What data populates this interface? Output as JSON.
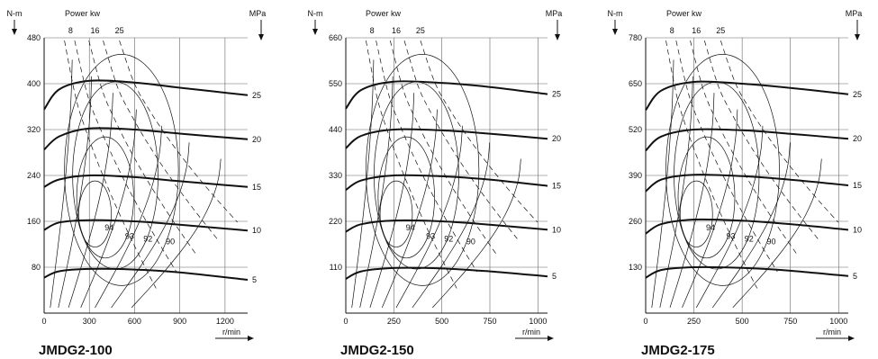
{
  "chart_data": [
    {
      "type": "line",
      "title": "JMDG2-100",
      "y_unit": "N-m",
      "x_unit": "r/min",
      "power_label": "Power kw",
      "power_values": [
        "8",
        "16",
        "25"
      ],
      "pressure_unit": "MPa",
      "pressure_values": [
        "25",
        "20",
        "15",
        "10",
        "5"
      ],
      "efficiency_labels": [
        "94",
        "93",
        "92",
        "90"
      ],
      "xlim": [
        0,
        1350
      ],
      "ylim": [
        0,
        480
      ],
      "x_ticks": [
        "0",
        "300",
        "600",
        "900",
        "1200"
      ],
      "x_tick_values": [
        0,
        300,
        600,
        900,
        1200
      ],
      "y_ticks": [
        "480",
        "400",
        "320",
        "240",
        "160",
        "80"
      ],
      "y_tick_values": [
        480,
        400,
        320,
        240,
        160,
        80
      ],
      "series": [
        {
          "name": "25",
          "x": [
            0,
            100,
            300,
            600,
            900,
            1350
          ],
          "y": [
            355,
            390,
            405,
            402,
            393,
            380
          ]
        },
        {
          "name": "20",
          "x": [
            0,
            100,
            300,
            600,
            900,
            1350
          ],
          "y": [
            285,
            308,
            322,
            320,
            313,
            303
          ]
        },
        {
          "name": "15",
          "x": [
            0,
            100,
            300,
            600,
            900,
            1350
          ],
          "y": [
            220,
            233,
            240,
            237,
            230,
            220
          ]
        },
        {
          "name": "10",
          "x": [
            0,
            100,
            300,
            600,
            900,
            1350
          ],
          "y": [
            145,
            158,
            162,
            160,
            154,
            144
          ]
        },
        {
          "name": "5",
          "x": [
            0,
            100,
            300,
            600,
            900,
            1350
          ],
          "y": [
            62,
            73,
            77,
            76,
            71,
            58
          ]
        }
      ]
    },
    {
      "type": "line",
      "title": "JMDG2-150",
      "y_unit": "N-m",
      "x_unit": "r/min",
      "power_label": "Power kw",
      "power_values": [
        "8",
        "16",
        "25"
      ],
      "pressure_unit": "MPa",
      "pressure_values": [
        "25",
        "20",
        "15",
        "10",
        "5"
      ],
      "efficiency_labels": [
        "94",
        "93",
        "92",
        "90"
      ],
      "xlim": [
        0,
        1050
      ],
      "ylim": [
        0,
        660
      ],
      "x_ticks": [
        "0",
        "250",
        "500",
        "750",
        "1000"
      ],
      "x_tick_values": [
        0,
        250,
        500,
        750,
        1000
      ],
      "y_ticks": [
        "660",
        "550",
        "440",
        "330",
        "220",
        "110"
      ],
      "y_tick_values": [
        660,
        550,
        440,
        330,
        220,
        110
      ],
      "series": [
        {
          "name": "25",
          "x": [
            0,
            80,
            250,
            500,
            750,
            1050
          ],
          "y": [
            490,
            535,
            555,
            552,
            542,
            525
          ]
        },
        {
          "name": "20",
          "x": [
            0,
            80,
            250,
            500,
            750,
            1050
          ],
          "y": [
            395,
            425,
            440,
            438,
            430,
            418
          ]
        },
        {
          "name": "15",
          "x": [
            0,
            80,
            250,
            500,
            750,
            1050
          ],
          "y": [
            295,
            318,
            330,
            328,
            320,
            305
          ]
        },
        {
          "name": "10",
          "x": [
            0,
            80,
            250,
            500,
            750,
            1050
          ],
          "y": [
            195,
            213,
            222,
            220,
            212,
            200
          ]
        },
        {
          "name": "5",
          "x": [
            0,
            80,
            250,
            500,
            750,
            1050
          ],
          "y": [
            82,
            100,
            108,
            107,
            100,
            88
          ]
        }
      ]
    },
    {
      "type": "line",
      "title": "JMDG2-175",
      "y_unit": "N-m",
      "x_unit": "r/min",
      "power_label": "Power kw",
      "power_values": [
        "8",
        "16",
        "25"
      ],
      "pressure_unit": "MPa",
      "pressure_values": [
        "25",
        "20",
        "15",
        "10",
        "5"
      ],
      "efficiency_labels": [
        "94",
        "93",
        "92",
        "90"
      ],
      "xlim": [
        0,
        1050
      ],
      "ylim": [
        0,
        780
      ],
      "x_ticks": [
        "0",
        "250",
        "500",
        "750",
        "1000"
      ],
      "x_tick_values": [
        0,
        250,
        500,
        750,
        1000
      ],
      "y_ticks": [
        "780",
        "650",
        "520",
        "390",
        "260",
        "130"
      ],
      "y_tick_values": [
        780,
        650,
        520,
        390,
        260,
        130
      ],
      "series": [
        {
          "name": "25",
          "x": [
            0,
            80,
            250,
            500,
            750,
            1050
          ],
          "y": [
            575,
            630,
            655,
            650,
            638,
            620
          ]
        },
        {
          "name": "20",
          "x": [
            0,
            80,
            250,
            500,
            750,
            1050
          ],
          "y": [
            460,
            500,
            520,
            518,
            508,
            494
          ]
        },
        {
          "name": "15",
          "x": [
            0,
            80,
            250,
            500,
            750,
            1050
          ],
          "y": [
            345,
            378,
            392,
            388,
            378,
            362
          ]
        },
        {
          "name": "10",
          "x": [
            0,
            80,
            250,
            500,
            750,
            1050
          ],
          "y": [
            225,
            252,
            265,
            262,
            252,
            236
          ]
        },
        {
          "name": "5",
          "x": [
            0,
            80,
            250,
            500,
            750,
            1050
          ],
          "y": [
            100,
            122,
            130,
            128,
            120,
            105
          ]
        }
      ]
    }
  ]
}
